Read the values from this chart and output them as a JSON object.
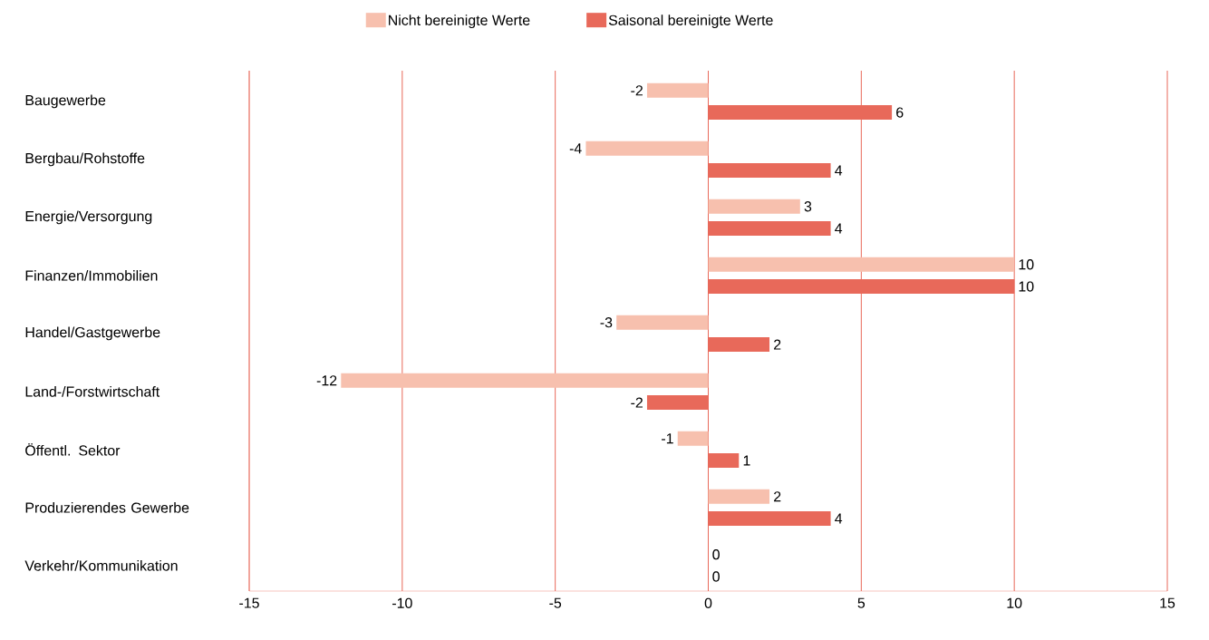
{
  "chart_data": {
    "type": "bar",
    "orientation": "horizontal",
    "categories": [
      "Baugewerbe",
      "Bergbau/Rohstoffe",
      "Energie/Versorgung",
      "Finanzen/Immobilien",
      "Handel/Gastgewerbe",
      "Land-/Forstwirtschaft",
      "Öffentl. Sektor",
      "Produzierendes Gewerbe",
      "Verkehr/Kommunikation"
    ],
    "series": [
      {
        "name": "Nicht bereinigte Werte",
        "color": "#f7c0ae",
        "values": [
          -2,
          -4,
          3,
          10,
          -3,
          -12,
          -1,
          2,
          0
        ]
      },
      {
        "name": "Saisonal bereinigte Werte",
        "color": "#e8695a",
        "values": [
          6,
          4,
          4,
          10,
          2,
          -2,
          1,
          4,
          0
        ]
      }
    ],
    "xlim": [
      -15,
      15
    ],
    "xticks": [
      -15,
      -10,
      -5,
      0,
      5,
      10,
      15
    ],
    "grid": "x",
    "legend": "top",
    "data_labels": true
  }
}
